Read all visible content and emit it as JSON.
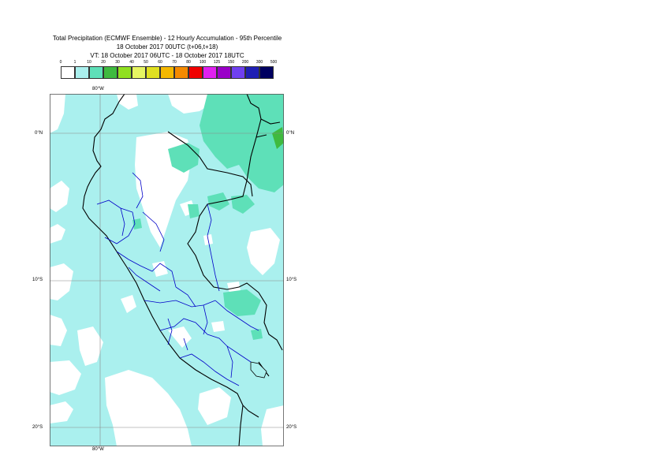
{
  "title": {
    "line1": "Total Precipitation (ECMWF Ensemble) - 12 Hourly Accumulation - 95th Percentile",
    "line2": "18 October 2017 00UTC (t+06,t+18)",
    "line3": "VT: 18 October 2017 06UTC - 18 October 2017 18UTC"
  },
  "legend": {
    "levels": [
      "0",
      "1",
      "10",
      "20",
      "30",
      "40",
      "50",
      "60",
      "70",
      "80",
      "100",
      "125",
      "150",
      "200",
      "300",
      "500"
    ],
    "colors": [
      "#ffffff",
      "#aaf0ee",
      "#5ee0b8",
      "#3fba3f",
      "#90e020",
      "#e6f562",
      "#e0e020",
      "#f5b800",
      "#f58a00",
      "#f00000",
      "#e020f0",
      "#9a00c8",
      "#7040f0",
      "#2020b4",
      "#000060"
    ]
  },
  "axes": {
    "lon_top": "80°W",
    "lon_bottom": "80°W",
    "lat_labels": [
      "0°N",
      "10°S",
      "20°S"
    ]
  }
}
